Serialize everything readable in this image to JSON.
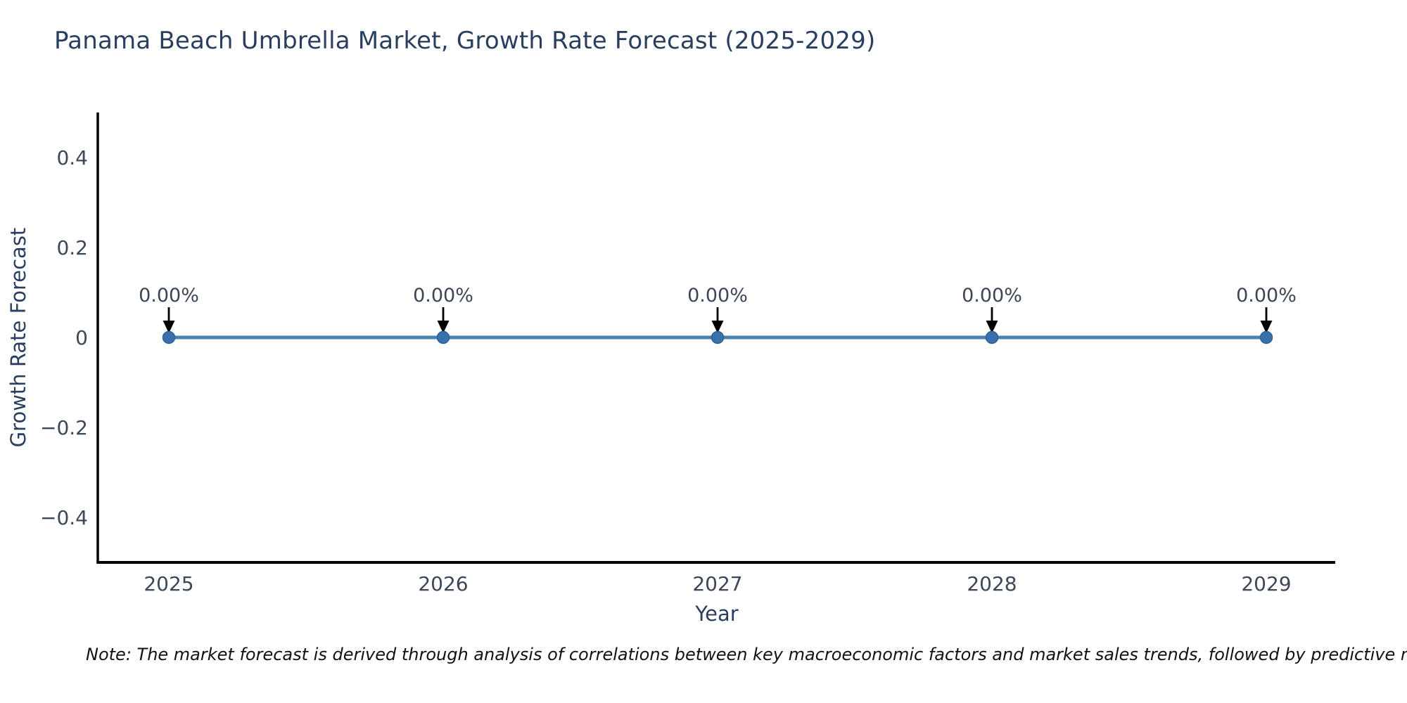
{
  "chart_data": {
    "type": "line",
    "title": "Panama Beach Umbrella Market, Growth Rate Forecast (2025-2029)",
    "xlabel": "Year",
    "ylabel": "Growth Rate Forecast",
    "x": [
      "2025",
      "2026",
      "2027",
      "2028",
      "2029"
    ],
    "series": [
      {
        "name": "Growth Rate Forecast",
        "values": [
          0,
          0,
          0,
          0,
          0
        ]
      }
    ],
    "point_labels": [
      "0.00%",
      "0.00%",
      "0.00%",
      "0.00%",
      "0.00%"
    ],
    "ylim": [
      -0.5,
      0.5
    ],
    "yticks": [
      {
        "value": -0.4,
        "label": "−0.4"
      },
      {
        "value": -0.2,
        "label": "−0.2"
      },
      {
        "value": 0,
        "label": "0"
      },
      {
        "value": 0.2,
        "label": "0.2"
      },
      {
        "value": 0.4,
        "label": "0.4"
      }
    ],
    "grid": false,
    "legend": "none",
    "colors": {
      "line": "#4d80b2",
      "marker": "#3872ad",
      "marker_edge": "#2d5f94",
      "axis": "#000000",
      "arrow": "#000000",
      "title_text": "#2a3f5f",
      "axis_title_text": "#2a3f5f",
      "tick_text": "#3c4759",
      "annotation_text": "#3d4656",
      "note_text": "#111111"
    }
  },
  "footnote": {
    "text": "Note: The market forecast is derived through analysis of correlations between key macroeconomic factors and market sales trends, followed by predictive modeling to project future sales."
  }
}
